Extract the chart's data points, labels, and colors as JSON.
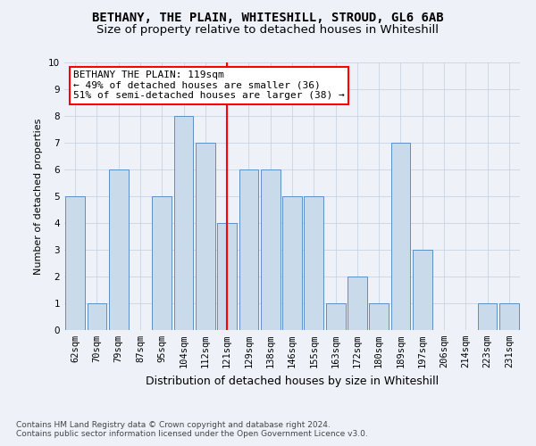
{
  "categories": [
    "62sqm",
    "70sqm",
    "79sqm",
    "87sqm",
    "95sqm",
    "104sqm",
    "112sqm",
    "121sqm",
    "129sqm",
    "138sqm",
    "146sqm",
    "155sqm",
    "163sqm",
    "172sqm",
    "180sqm",
    "189sqm",
    "197sqm",
    "206sqm",
    "214sqm",
    "223sqm",
    "231sqm"
  ],
  "values": [
    5,
    1,
    6,
    0,
    5,
    8,
    7,
    4,
    6,
    6,
    5,
    5,
    1,
    2,
    1,
    7,
    3,
    0,
    0,
    1,
    1
  ],
  "bar_color": "#c9daea",
  "bar_edge_color": "#5b8fc9",
  "vline_x_index": 7,
  "vline_color": "red",
  "title_line1": "BETHANY, THE PLAIN, WHITESHILL, STROUD, GL6 6AB",
  "title_line2": "Size of property relative to detached houses in Whiteshill",
  "xlabel": "Distribution of detached houses by size in Whiteshill",
  "ylabel": "Number of detached properties",
  "ylim": [
    0,
    10
  ],
  "yticks": [
    0,
    1,
    2,
    3,
    4,
    5,
    6,
    7,
    8,
    9,
    10
  ],
  "annotation_title": "BETHANY THE PLAIN: 119sqm",
  "annotation_line1": "← 49% of detached houses are smaller (36)",
  "annotation_line2": "51% of semi-detached houses are larger (38) →",
  "annotation_box_color": "white",
  "annotation_box_edge_color": "red",
  "footer_line1": "Contains HM Land Registry data © Crown copyright and database right 2024.",
  "footer_line2": "Contains public sector information licensed under the Open Government Licence v3.0.",
  "background_color": "#eef2f8",
  "grid_color": "#c0cfe0",
  "title_fontsize": 10,
  "subtitle_fontsize": 9.5,
  "ylabel_fontsize": 8,
  "xlabel_fontsize": 9,
  "tick_fontsize": 7.5,
  "annotation_fontsize": 8,
  "footer_fontsize": 6.5
}
